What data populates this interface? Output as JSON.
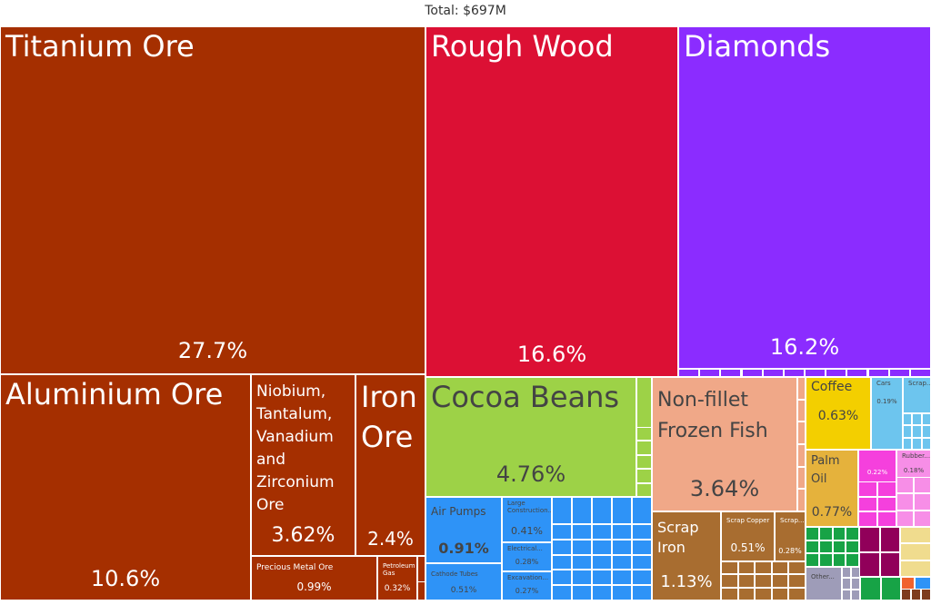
{
  "chart_data": {
    "type": "treemap",
    "title": "Total: $697M",
    "colors": {
      "minerals": "#a52f00",
      "wood": "#dc1034",
      "precious_stones": "#8b2cff",
      "vegetable": "#9dd247",
      "animal": "#f0a888",
      "machines": "#2e93f7",
      "metals": "#a86d30",
      "foodstuffs": "#f3cf00",
      "transportation": "#6dc5ee",
      "animal_vegetable_fats": "#e5b23c",
      "chemicals": "#f540dd",
      "plastics_rubber": "#f78ee7",
      "textiles": "#17a346",
      "stone_glass": "#f0dc8e",
      "misc": "#9e9cb8",
      "footwear_headwear": "#91005a",
      "instruments": "#f0622d",
      "weapons": "#7e3c1d"
    },
    "items": [
      {
        "name": "Titanium Ore",
        "share": 27.7,
        "pct_label": "27.7%",
        "group": "minerals"
      },
      {
        "name": "Aluminium Ore",
        "share": 10.6,
        "pct_label": "10.6%",
        "group": "minerals"
      },
      {
        "name": "Niobium, Tantalum, Vanadium and Zirconium Ore",
        "share": 3.62,
        "pct_label": "3.62%",
        "group": "minerals"
      },
      {
        "name": "Iron Ore",
        "share": 2.4,
        "pct_label": "2.4%",
        "group": "minerals"
      },
      {
        "name": "Precious Metal Ore",
        "share": 0.99,
        "pct_label": "0.99%",
        "group": "minerals"
      },
      {
        "name": "Petroleum Gas",
        "share": 0.32,
        "pct_label": "0.32%",
        "group": "minerals"
      },
      {
        "name": "Rough Wood",
        "share": 16.6,
        "pct_label": "16.6%",
        "group": "wood"
      },
      {
        "name": "Diamonds",
        "share": 16.2,
        "pct_label": "16.2%",
        "group": "precious_stones"
      },
      {
        "name": "Cocoa Beans",
        "share": 4.76,
        "pct_label": "4.76%",
        "group": "vegetable"
      },
      {
        "name": "Non-fillet Frozen Fish",
        "share": 3.64,
        "pct_label": "3.64%",
        "group": "animal"
      },
      {
        "name": "Air Pumps",
        "share": 0.91,
        "pct_label": "0.91%",
        "group": "machines"
      },
      {
        "name": "Large Construction...",
        "share": 0.41,
        "pct_label": "0.41%",
        "group": "machines"
      },
      {
        "name": "Electrical...",
        "share": 0.28,
        "pct_label": "0.28%",
        "group": "machines"
      },
      {
        "name": "Excavation...",
        "share": 0.27,
        "pct_label": "0.27%",
        "group": "machines"
      },
      {
        "name": "Cathode Tubes",
        "share": 0.51,
        "pct_label": "0.51%",
        "group": "machines"
      },
      {
        "name": "Scrap Iron",
        "share": 1.13,
        "pct_label": "1.13%",
        "group": "metals"
      },
      {
        "name": "Scrap Copper",
        "share": 0.51,
        "pct_label": "0.51%",
        "group": "metals"
      },
      {
        "name": "Scrap...",
        "share": 0.28,
        "pct_label": "0.28%",
        "group": "metals"
      },
      {
        "name": "Coffee",
        "share": 0.63,
        "pct_label": "0.63%",
        "group": "foodstuffs"
      },
      {
        "name": "Palm Oil",
        "share": 0.77,
        "pct_label": "0.77%",
        "group": "animal_vegetable_fats"
      },
      {
        "name": "Cars",
        "share": 0.19,
        "pct_label": "0.19%",
        "group": "transportation"
      },
      {
        "name": "Scrap...",
        "share": null,
        "pct_label": "",
        "group": "transportation"
      },
      {
        "name": "",
        "share": 0.22,
        "pct_label": "0.22%",
        "group": "chemicals"
      },
      {
        "name": "Rubber...",
        "share": 0.18,
        "pct_label": "0.18%",
        "group": "plastics_rubber"
      },
      {
        "name": "Other...",
        "share": null,
        "pct_label": "",
        "group": "misc"
      }
    ]
  }
}
